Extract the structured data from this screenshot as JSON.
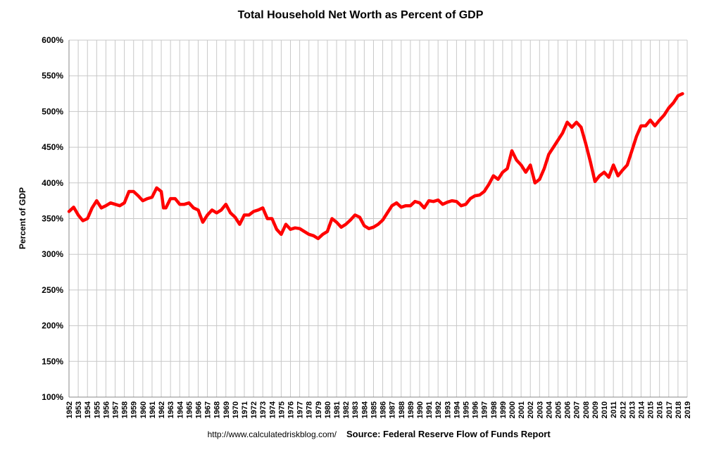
{
  "chart_data": {
    "type": "line",
    "title": "Total Household Net Worth as Percent of GDP",
    "y_label": "Percent of GDP",
    "annotations": [
      "http://www.calculatedriskblog.com/",
      "Source: Federal Reserve Flow of Funds Report"
    ],
    "series": [
      {
        "name": "Household Net Worth",
        "color": "#ff0000",
        "x": [
          1952.0,
          1952.5,
          1953.0,
          1953.5,
          1954.0,
          1954.5,
          1955.0,
          1955.5,
          1956.0,
          1956.5,
          1957.0,
          1957.5,
          1958.0,
          1958.5,
          1959.0,
          1959.5,
          1960.0,
          1960.5,
          1961.0,
          1961.5,
          1962.0,
          1962.25,
          1962.5,
          1963.0,
          1963.5,
          1964.0,
          1964.5,
          1965.0,
          1965.5,
          1966.0,
          1966.5,
          1967.0,
          1967.5,
          1968.0,
          1968.5,
          1969.0,
          1969.5,
          1970.0,
          1970.5,
          1971.0,
          1971.5,
          1972.0,
          1972.5,
          1973.0,
          1973.5,
          1974.0,
          1974.5,
          1975.0,
          1975.5,
          1976.0,
          1976.5,
          1977.0,
          1977.5,
          1978.0,
          1978.5,
          1979.0,
          1979.5,
          1980.0,
          1980.5,
          1981.0,
          1981.5,
          1982.0,
          1982.5,
          1983.0,
          1983.5,
          1984.0,
          1984.5,
          1985.0,
          1985.5,
          1986.0,
          1986.5,
          1987.0,
          1987.5,
          1988.0,
          1988.5,
          1989.0,
          1989.5,
          1990.0,
          1990.5,
          1991.0,
          1991.5,
          1992.0,
          1992.5,
          1993.0,
          1993.5,
          1994.0,
          1994.5,
          1995.0,
          1995.5,
          1996.0,
          1996.5,
          1997.0,
          1997.5,
          1998.0,
          1998.5,
          1999.0,
          1999.5,
          2000.0,
          2000.5,
          2001.0,
          2001.5,
          2002.0,
          2002.5,
          2003.0,
          2003.5,
          2004.0,
          2004.5,
          2005.0,
          2005.5,
          2006.0,
          2006.5,
          2007.0,
          2007.5,
          2008.0,
          2008.5,
          2009.0,
          2009.5,
          2010.0,
          2010.5,
          2011.0,
          2011.5,
          2012.0,
          2012.5,
          2013.0,
          2013.5,
          2014.0,
          2014.5,
          2015.0,
          2015.5,
          2016.0,
          2016.5,
          2017.0,
          2017.5,
          2018.0,
          2018.5
        ],
        "values": [
          360,
          366,
          355,
          347,
          350,
          365,
          375,
          365,
          368,
          372,
          370,
          368,
          372,
          388,
          388,
          382,
          375,
          378,
          380,
          393,
          388,
          365,
          365,
          378,
          378,
          370,
          370,
          372,
          365,
          362,
          345,
          355,
          362,
          358,
          362,
          370,
          358,
          352,
          342,
          355,
          355,
          360,
          362,
          365,
          350,
          350,
          335,
          328,
          342,
          335,
          337,
          336,
          332,
          328,
          326,
          322,
          328,
          332,
          350,
          345,
          338,
          342,
          348,
          355,
          352,
          340,
          336,
          338,
          342,
          348,
          358,
          368,
          372,
          366,
          368,
          368,
          374,
          372,
          365,
          375,
          374,
          376,
          370,
          373,
          375,
          374,
          368,
          370,
          378,
          382,
          383,
          388,
          398,
          410,
          405,
          415,
          420,
          445,
          432,
          425,
          415,
          425,
          400,
          405,
          420,
          440,
          450,
          460,
          470,
          485,
          478,
          485,
          478,
          455,
          430,
          402,
          410,
          415,
          408,
          425,
          410,
          418,
          425,
          445,
          465,
          480,
          480,
          488,
          480,
          488,
          495,
          505,
          512,
          522,
          525
        ]
      }
    ],
    "xlim": [
      1952,
      2019
    ],
    "xticks": [
      1952,
      1953,
      1954,
      1955,
      1956,
      1957,
      1958,
      1959,
      1960,
      1961,
      1962,
      1963,
      1964,
      1965,
      1966,
      1967,
      1968,
      1969,
      1970,
      1971,
      1972,
      1973,
      1974,
      1975,
      1976,
      1977,
      1978,
      1979,
      1980,
      1981,
      1982,
      1983,
      1984,
      1985,
      1986,
      1987,
      1988,
      1989,
      1990,
      1991,
      1992,
      1993,
      1994,
      1995,
      1996,
      1997,
      1998,
      1999,
      2000,
      2001,
      2002,
      2003,
      2004,
      2005,
      2006,
      2007,
      2008,
      2009,
      2010,
      2011,
      2012,
      2013,
      2014,
      2015,
      2016,
      2017,
      2018,
      2019
    ],
    "ylim": [
      100,
      600
    ],
    "yticks": [
      {
        "value": 100,
        "label": "100%"
      },
      {
        "value": 150,
        "label": "150%"
      },
      {
        "value": 200,
        "label": "200%"
      },
      {
        "value": 250,
        "label": "250%"
      },
      {
        "value": 300,
        "label": "300%"
      },
      {
        "value": 350,
        "label": "350%"
      },
      {
        "value": 400,
        "label": "400%"
      },
      {
        "value": 450,
        "label": "450%"
      },
      {
        "value": 500,
        "label": "500%"
      },
      {
        "value": 550,
        "label": "550%"
      },
      {
        "value": 600,
        "label": "600%"
      }
    ],
    "grid": true
  }
}
